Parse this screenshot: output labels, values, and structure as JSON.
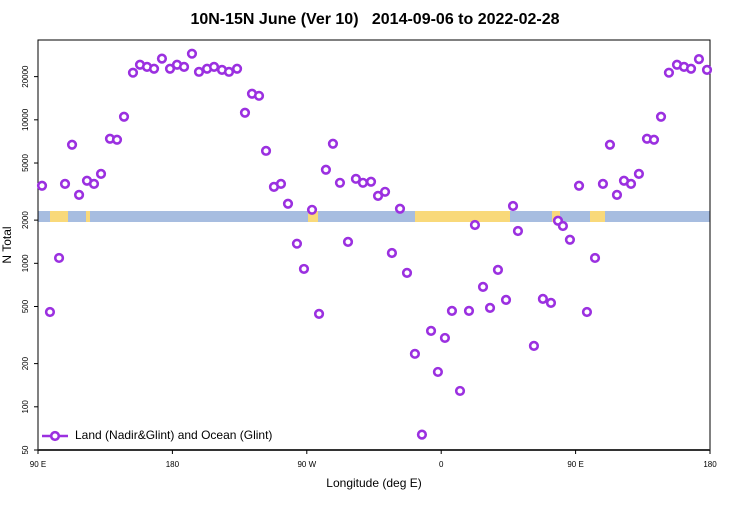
{
  "chart_data": {
    "type": "scatter",
    "title": "10N-15N June (Ver 10)   2014-09-06 to 2022-02-28",
    "x_label": "Longitude (deg E)",
    "y_label": "N Total",
    "log_y": true,
    "x": [
      92.7,
      98.0,
      104.1,
      108.1,
      112.8,
      117.5,
      122.8,
      127.5,
      132.2,
      138.2,
      142.9,
      147.6,
      153.6,
      158.3,
      163.0,
      167.7,
      173.0,
      178.4,
      183.1,
      187.8,
      193.1,
      197.8,
      203.2,
      207.9,
      213.2,
      217.9,
      223.3,
      228.6,
      233.3,
      238.0,
      242.7,
      248.0,
      252.7,
      257.4,
      263.4,
      268.1,
      273.5,
      278.2,
      282.8,
      287.5,
      292.2,
      297.6,
      302.9,
      307.6,
      313.0,
      317.7,
      322.4,
      327.0,
      332.4,
      337.1,
      342.4,
      347.1,
      353.2,
      357.8,
      362.5,
      367.2,
      372.6,
      378.6,
      382.6,
      388.0,
      392.7,
      398.0,
      403.4,
      408.1,
      411.4,
      422.1,
      428.1,
      433.5,
      438.2,
      441.5,
      446.2,
      452.3,
      457.6,
      463.0,
      468.3,
      473.0,
      477.7,
      482.4,
      487.1,
      492.4,
      497.8,
      502.5,
      507.2,
      512.5,
      517.9,
      522.6,
      527.3,
      532.6,
      538.0
    ],
    "series": [
      {
        "name": "Land (Nadir&Glint) and Ocean (Glint)",
        "color": "#9b30e0",
        "values": [
          3470,
          458,
          1090,
          3580,
          6700,
          3000,
          3760,
          3580,
          4200,
          7380,
          7260,
          10500,
          21300,
          24200,
          23400,
          22700,
          26700,
          22700,
          24200,
          23400,
          28900,
          21600,
          22700,
          23400,
          22300,
          21600,
          22700,
          11200,
          15200,
          14700,
          6080,
          3410,
          3580,
          2600,
          1370,
          914,
          2360,
          444,
          4490,
          6810,
          3640,
          1410,
          3880,
          3640,
          3700,
          2950,
          3150,
          1180,
          2400,
          858,
          234,
          64,
          338,
          175,
          302,
          466,
          129,
          466,
          1850,
          685,
          489,
          900,
          556,
          2510,
          1680,
          266,
          565,
          530,
          1980,
          1820,
          1460,
          3470,
          458,
          1090,
          3580,
          6700,
          3000,
          3760,
          3580,
          4200,
          7380,
          7260,
          10500,
          21300,
          24200,
          23400,
          22700,
          26500,
          22300
        ]
      }
    ],
    "xlim": [
      90,
      540
    ],
    "xticks": [
      {
        "value": 90,
        "label": "90 E"
      },
      180,
      {
        "value": 270,
        "label": "90 W"
      },
      {
        "value": 360,
        "label": "0"
      },
      {
        "value": 450,
        "label": "90 E"
      },
      {
        "value": 540,
        "label": "180"
      }
    ],
    "ylim": [
      50,
      36000
    ],
    "yticks": [
      50,
      100,
      200,
      500,
      1000,
      2000,
      5000,
      10000,
      20000
    ],
    "legend": "lower left"
  }
}
